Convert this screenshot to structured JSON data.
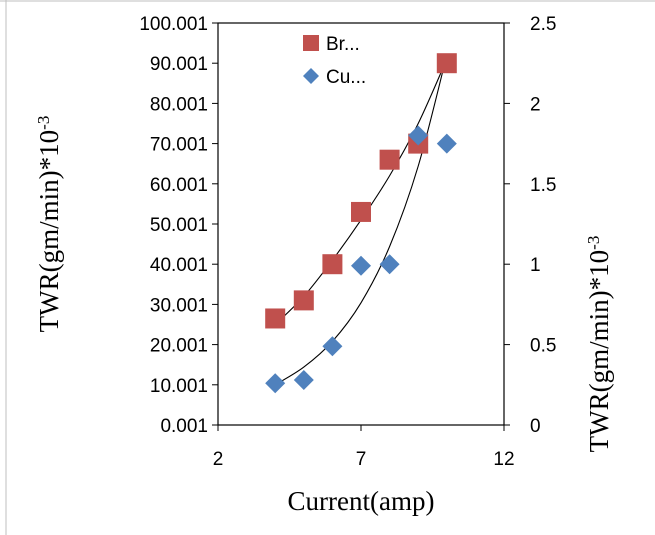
{
  "chart_data": {
    "type": "scatter",
    "x_axis": {
      "label": "Current(amp)",
      "range": [
        2,
        12
      ],
      "ticks": [
        "2",
        "7",
        "12"
      ]
    },
    "y_left": {
      "label_base": "TWR(gm/min)*10",
      "label_exp": "-3",
      "range": [
        0.001,
        100.001
      ],
      "ticks": [
        "0.001",
        "10.001",
        "20.001",
        "30.001",
        "40.001",
        "50.001",
        "60.001",
        "70.001",
        "80.001",
        "90.001",
        "100.001"
      ]
    },
    "y_right": {
      "label_base": "TWR(gm/min)*10",
      "label_exp": "-3",
      "range": [
        0,
        2.5
      ],
      "ticks": [
        "0",
        "0.5",
        "1",
        "1.5",
        "2",
        "2.5"
      ]
    },
    "grid": false,
    "legend_position": "top-left",
    "series": [
      {
        "name": "Br...",
        "axis": "left",
        "marker": "square",
        "color": "#C0504D",
        "x": [
          4,
          5,
          6,
          7,
          8,
          9,
          10
        ],
        "y": [
          26.5,
          31,
          40,
          53,
          66,
          70,
          90
        ]
      },
      {
        "name": "Cu...",
        "axis": "right",
        "marker": "diamond",
        "color": "#4F81BD",
        "x": [
          4,
          5,
          6,
          7,
          8,
          9,
          10
        ],
        "y": [
          0.26,
          0.28,
          0.49,
          0.99,
          1.0,
          1.8,
          1.75
        ]
      }
    ],
    "trendlines": [
      {
        "series": "Br...",
        "axis": "left",
        "x": [
          4,
          5,
          6,
          7,
          8,
          9,
          10
        ],
        "y": [
          25,
          32,
          41,
          51,
          62,
          75,
          91
        ]
      },
      {
        "series": "Cu...",
        "axis": "right",
        "x": [
          4,
          5,
          6,
          7,
          8,
          9,
          10
        ],
        "y": [
          0.25,
          0.36,
          0.52,
          0.76,
          1.11,
          1.61,
          2.3
        ]
      }
    ]
  }
}
